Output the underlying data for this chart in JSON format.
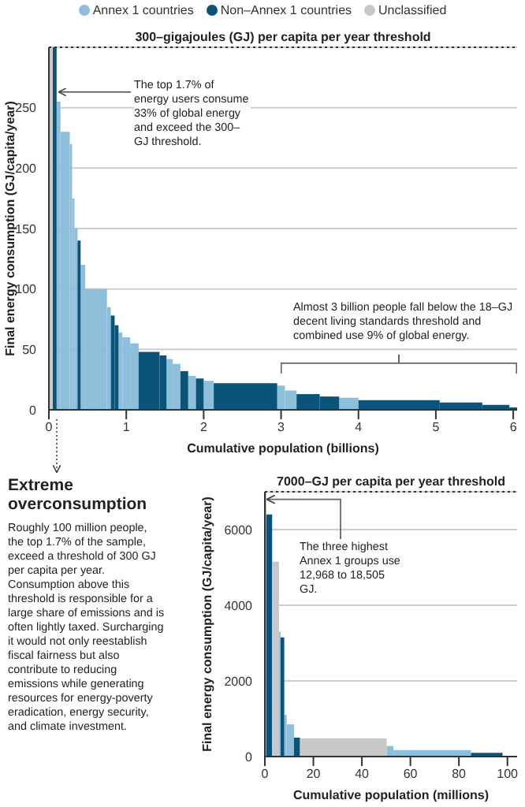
{
  "chart_data": [
    {
      "type": "histogram",
      "legend": "top",
      "grid": "y",
      "xlabel": "Cumulative population (billions)",
      "ylabel": "Final energy consumption (GJ/capita/year)",
      "bins": [
        0,
        0.05,
        0.1,
        0.15,
        0.27,
        0.3,
        0.33,
        0.37,
        0.41,
        0.47,
        0.75,
        0.8,
        0.85,
        0.9,
        0.95,
        1.05,
        1.16,
        1.43,
        1.52,
        1.6,
        1.7,
        1.8,
        1.9,
        2.0,
        2.13,
        2.95,
        3.05,
        3.2,
        3.5,
        3.75,
        4.0,
        5.05,
        5.6,
        5.95,
        6.05
      ],
      "series": [
        {
          "name": "Annex 1 countries",
          "color": "#8dbfdb",
          "values": [
            null,
            null,
            255,
            230,
            220,
            175,
            150,
            null,
            120,
            100,
            85,
            null,
            null,
            64,
            60,
            55,
            null,
            null,
            42,
            38,
            null,
            28,
            null,
            24,
            null,
            20,
            16,
            null,
            null,
            10,
            null,
            null,
            null,
            null
          ]
        },
        {
          "name": "Non–Annex 1 countries",
          "color": "#0b5479",
          "values": [
            null,
            300,
            null,
            null,
            null,
            null,
            null,
            140,
            null,
            null,
            null,
            78,
            70,
            null,
            null,
            null,
            48,
            45,
            null,
            null,
            32,
            null,
            26,
            null,
            22,
            null,
            null,
            13,
            11,
            null,
            8,
            6,
            4,
            2
          ]
        },
        {
          "name": "Unclassified",
          "color": "#c8c8c8",
          "values": [
            300,
            null,
            null,
            null,
            null,
            null,
            null,
            null,
            null,
            null,
            null,
            null,
            null,
            null,
            null,
            null,
            null,
            null,
            null,
            null,
            null,
            null,
            null,
            null,
            null,
            null,
            null,
            null,
            null,
            null,
            null,
            null,
            null,
            null
          ]
        }
      ],
      "xlim": [
        0,
        6.05
      ],
      "xticks": [
        0,
        1,
        2,
        3,
        4,
        5,
        6
      ],
      "ylim": [
        0,
        300
      ],
      "yticks": [
        0,
        50,
        100,
        150,
        200,
        250
      ],
      "ref_lines": [
        {
          "axis": "y",
          "value": 300,
          "label": "300–gigajoules (GJ) per capita per year threshold",
          "color": "#333333",
          "line_style": "dotted"
        }
      ],
      "annotations": [
        {
          "text": "The top 1.7% of energy users consume 33% of global energy and exceed the 300–GJ threshold.",
          "x": 0.12,
          "y": 263
        },
        "Almost 3 billion people fall below the 18–GJ decent living standards threshold and combined use 9% of global energy."
      ]
    },
    {
      "type": "histogram",
      "grid": "y",
      "xlabel": "Cumulative population (millions)",
      "ylabel": "Final energy consumption (GJ/capita/year)",
      "bins": [
        0,
        0.6,
        3,
        5.8,
        6.5,
        8,
        9,
        12,
        14.5,
        50.2,
        53,
        85,
        98
      ],
      "series": [
        {
          "color": "#8dbfdb",
          "values": [
            7000,
            null,
            null,
            3300,
            null,
            1100,
            850,
            null,
            null,
            280,
            170,
            null
          ]
        },
        {
          "color": "#0b5479",
          "values": [
            null,
            6400,
            null,
            null,
            3150,
            null,
            null,
            500,
            null,
            null,
            null,
            100
          ]
        },
        {
          "color": "#c8c8c8",
          "values": [
            null,
            null,
            5150,
            null,
            null,
            null,
            null,
            null,
            480,
            null,
            null,
            null
          ]
        }
      ],
      "xlim": [
        0,
        104
      ],
      "xticks": [
        0,
        20,
        40,
        60,
        80,
        100
      ],
      "ylim": [
        0,
        7000
      ],
      "yticks": [
        0,
        2000,
        4000,
        6000
      ],
      "ref_lines": [
        {
          "axis": "y",
          "value": 7000,
          "label": "7000–GJ per capita per year threshold",
          "color": "#333333",
          "line_style": "dotted"
        }
      ],
      "annotations": [
        {
          "text": "The three highest Annex 1 groups use 12,968 to 18,505 GJ.",
          "x": 0.7,
          "y": 6800
        },
        "Extreme overconsumption",
        "Roughly 100 million people, the top 1.7% of the sample, exceed a threshold of 300 GJ per capita per year. Consumption above this threshold is responsible for a large share of emissions and is often lightly taxed. Surcharging it would not only reestablish fiscal fairness but also contribute to reducing emissions while generating resources for energy-poverty eradication, energy security, and climate investment."
      ]
    }
  ]
}
